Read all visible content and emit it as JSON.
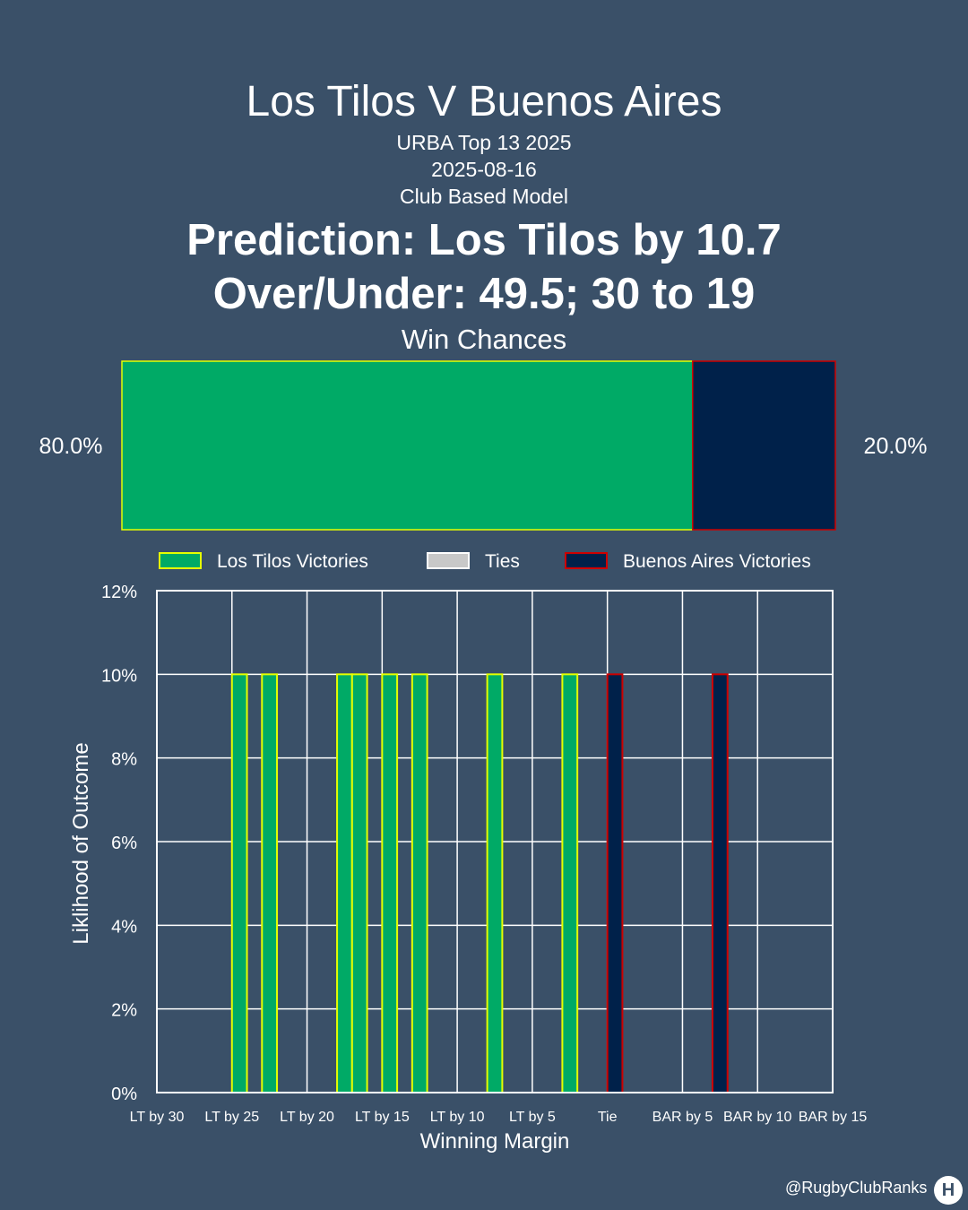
{
  "header": {
    "title": "Los Tilos V Buenos Aires",
    "competition": "URBA Top 13 2025",
    "date": "2025-08-16",
    "model": "Club Based Model",
    "prediction": "Prediction: Los Tilos by 10.7",
    "over_under": "Over/Under: 49.5; 30 to 19"
  },
  "win_chances": {
    "title": "Win Chances",
    "home_label": "80.0%",
    "away_label": "20.0%",
    "home": 0.8,
    "away": 0.2
  },
  "legend": [
    "Los Tilos Victories",
    "Ties",
    "Buenos Aires Victories"
  ],
  "colors": {
    "home_fill": "#00aa66",
    "home_edge": "#e5ff00",
    "tie_fill": "#c8c8c8",
    "away_fill": "#00214a",
    "away_edge": "#cc0000",
    "background": "#3a5068"
  },
  "chart_data": {
    "type": "bar",
    "xlabel": "Winning Margin",
    "ylabel": "Liklihood of Outcome",
    "ylim": [
      0,
      12
    ],
    "yticks": [
      "0%",
      "2%",
      "4%",
      "6%",
      "8%",
      "10%",
      "12%"
    ],
    "xlim": [
      -30,
      15
    ],
    "xticks": [
      {
        "x": -30,
        "label": "LT by 30"
      },
      {
        "x": -25,
        "label": "LT by 25"
      },
      {
        "x": -20,
        "label": "LT by 20"
      },
      {
        "x": -15,
        "label": "LT by 15"
      },
      {
        "x": -10,
        "label": "LT by 10"
      },
      {
        "x": -5,
        "label": "LT by 5"
      },
      {
        "x": 0,
        "label": "Tie"
      },
      {
        "x": 5,
        "label": "BAR by 5"
      },
      {
        "x": 10,
        "label": "BAR by 10"
      },
      {
        "x": 15,
        "label": "BAR by 15"
      }
    ],
    "series": [
      {
        "name": "Los Tilos Victories",
        "points": [
          {
            "x": -25,
            "y": 10
          },
          {
            "x": -23,
            "y": 10
          },
          {
            "x": -18,
            "y": 10
          },
          {
            "x": -17,
            "y": 10
          },
          {
            "x": -15,
            "y": 10
          },
          {
            "x": -13,
            "y": 10
          },
          {
            "x": -8,
            "y": 10
          },
          {
            "x": -3,
            "y": 10
          }
        ]
      },
      {
        "name": "Ties",
        "points": []
      },
      {
        "name": "Buenos Aires Victories",
        "points": [
          {
            "x": 0,
            "y": 10
          },
          {
            "x": 7,
            "y": 10
          }
        ]
      }
    ],
    "grid": true,
    "legend_position": "top"
  },
  "footer": {
    "handle": "@RugbyClubRanks",
    "logo_glyph": "H"
  }
}
